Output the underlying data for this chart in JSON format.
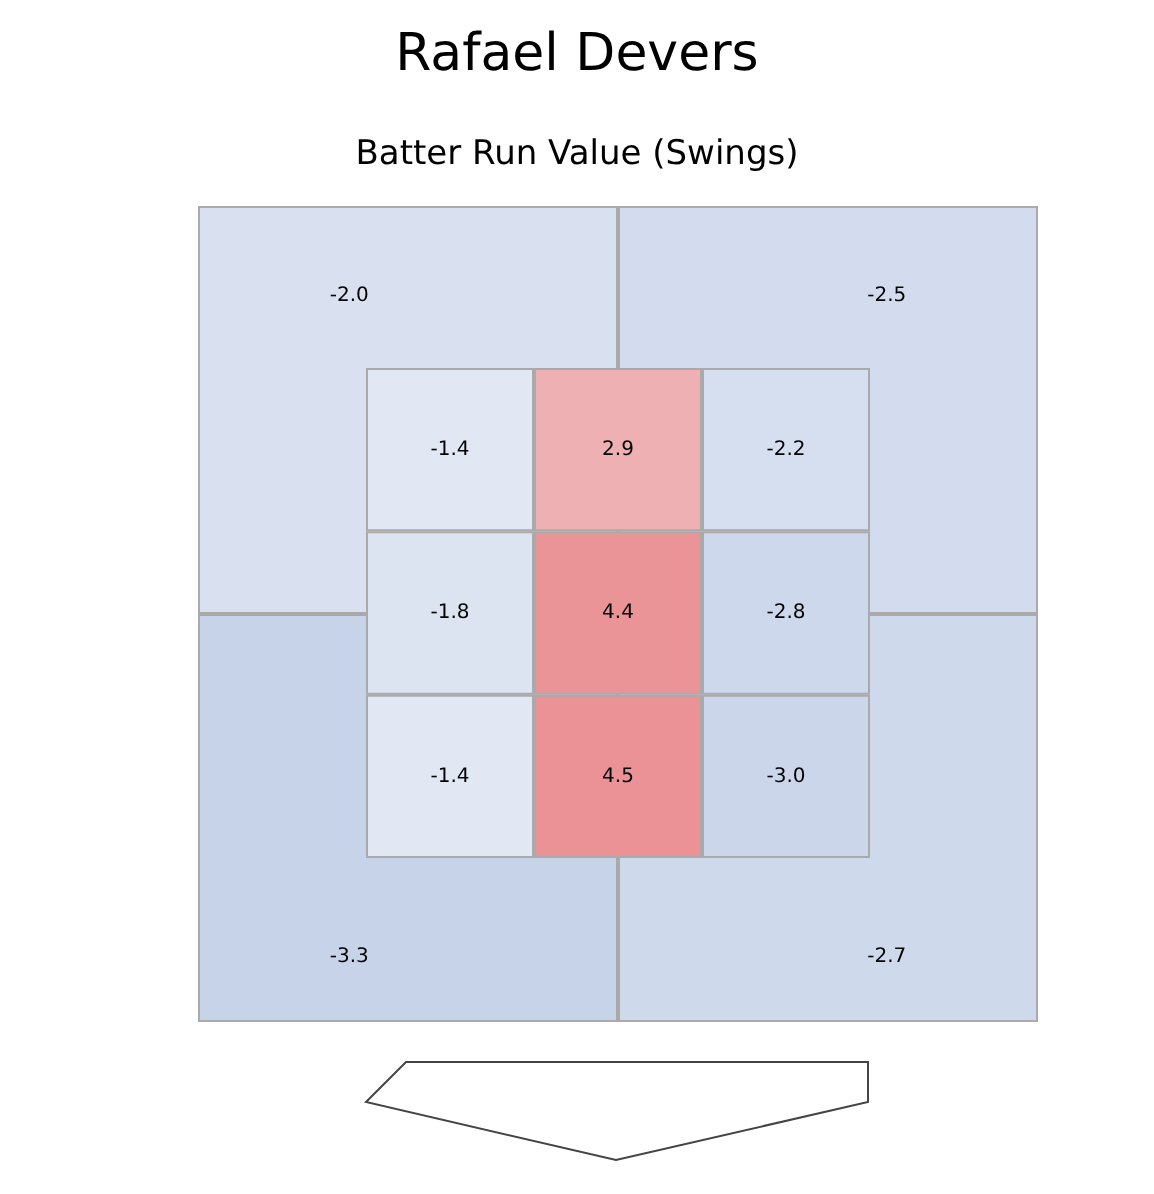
{
  "chart_data": [
    {
      "type": "heatmap",
      "title": "Rafael Devers",
      "subtitle": "Batter Run Value (Swings)",
      "categories": [
        null,
        null
      ],
      "y_categories": [
        null,
        null
      ],
      "cells": [
        [
          -2.0,
          -2.5
        ],
        [
          -3.3,
          -2.7
        ]
      ],
      "cell_labels": [
        [
          "-2.0",
          "-2.5"
        ],
        [
          "-3.3",
          "-2.7"
        ]
      ]
    },
    {
      "type": "heatmap",
      "categories": [
        null,
        null,
        null
      ],
      "y_categories": [
        null,
        null,
        null
      ],
      "cells": [
        [
          -1.4,
          2.9,
          -2.2
        ],
        [
          -1.8,
          4.4,
          -2.8
        ],
        [
          -1.4,
          4.5,
          -3.0
        ]
      ],
      "cell_labels": [
        [
          "-1.4",
          "2.9",
          "-2.2"
        ],
        [
          "-1.8",
          "4.4",
          "-2.8"
        ],
        [
          "-1.4",
          "4.5",
          "-3.0"
        ]
      ]
    }
  ]
}
